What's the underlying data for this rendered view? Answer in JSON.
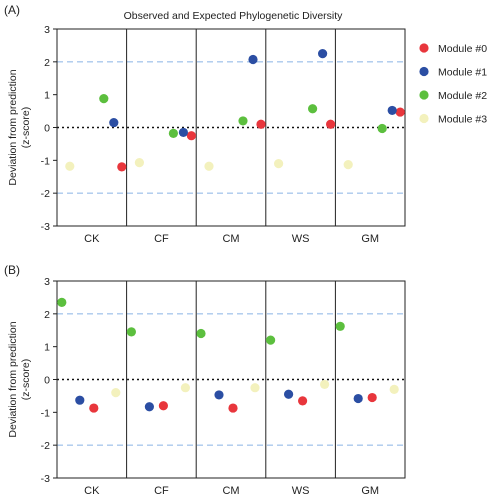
{
  "chart_data": [
    {
      "type": "scatter",
      "panel_label": "(A)",
      "title": "Observed and Expected Phylogenetic Diversity",
      "ylabel": "Deviation from prediction",
      "ylabel_sub": "(z-score)",
      "ylim": [
        -3,
        3
      ],
      "yticks": [
        "3",
        "2",
        "1",
        "0",
        "-1",
        "-2",
        "-3"
      ],
      "categories": [
        "CK",
        "CF",
        "CM",
        "WS",
        "GM"
      ],
      "reference_lines": {
        "dashed_blue": [
          2,
          -2
        ],
        "dotted_black": [
          0
        ]
      },
      "legend_position": "right",
      "series": [
        {
          "name": "Module #0",
          "color": "#e8363c",
          "values": [
            -1.2,
            -0.25,
            0.1,
            0.1,
            0.47
          ]
        },
        {
          "name": "Module #1",
          "color": "#2b4ea3",
          "values": [
            0.15,
            -0.15,
            2.07,
            2.25,
            0.52
          ]
        },
        {
          "name": "Module #2",
          "color": "#5cbf3e",
          "values": [
            0.88,
            -0.18,
            0.2,
            0.57,
            -0.03
          ]
        },
        {
          "name": "Module #3",
          "color": "#f3f1bd",
          "values": [
            -1.18,
            -1.07,
            -1.18,
            -1.1,
            -1.13
          ]
        }
      ]
    },
    {
      "type": "scatter",
      "panel_label": "(B)",
      "ylabel": "Deviation from prediction",
      "ylabel_sub": "(z-score)",
      "ylim": [
        -3,
        3
      ],
      "yticks": [
        "3",
        "2",
        "1",
        "0",
        "-1",
        "-2",
        "-3"
      ],
      "categories": [
        "CK",
        "CF",
        "CM",
        "WS",
        "GM"
      ],
      "reference_lines": {
        "dashed_blue": [
          2,
          -2
        ],
        "dotted_black": [
          0
        ]
      },
      "series": [
        {
          "color": "#2b4ea3",
          "values": [
            -0.63,
            -0.83,
            -0.47,
            -0.45,
            -0.58
          ]
        },
        {
          "color": "#e8363c",
          "values": [
            -0.87,
            -0.8,
            -0.87,
            -0.65,
            -0.55
          ]
        },
        {
          "color": "#f3f1bd",
          "values": [
            -0.4,
            -0.25,
            -0.25,
            -0.15,
            -0.3
          ]
        },
        {
          "color": "#5cbf3e",
          "values": [
            2.35,
            1.45,
            1.4,
            1.2,
            1.62
          ]
        }
      ]
    }
  ]
}
